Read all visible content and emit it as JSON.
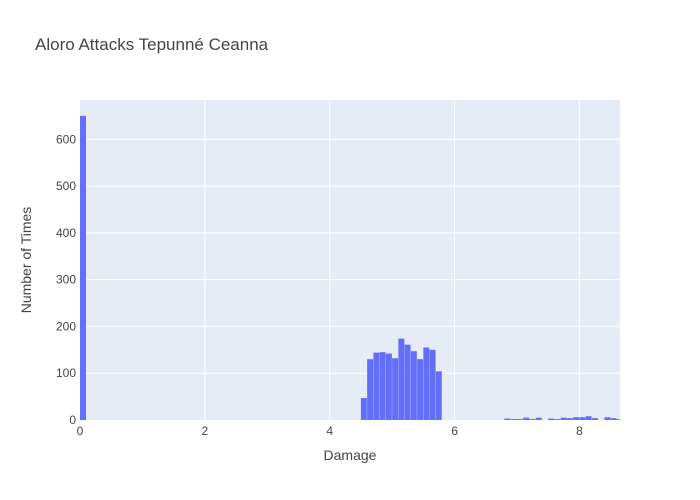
{
  "chart_data": {
    "type": "bar",
    "title": "Aloro Attacks Tepunné Ceanna",
    "xlabel": "Damage",
    "ylabel": "Number of Times",
    "xlim": [
      0,
      8.65
    ],
    "ylim": [
      0,
      684
    ],
    "bin_width": 0.1,
    "x_ticks": [
      0,
      2,
      4,
      6,
      8
    ],
    "y_ticks": [
      0,
      100,
      200,
      300,
      400,
      500,
      600
    ],
    "grid": true,
    "bar_color": "#636efa",
    "plot_bg": "#e5ecf6",
    "bins": [
      {
        "x0": 0.0,
        "y": 650
      },
      {
        "x0": 4.5,
        "y": 47
      },
      {
        "x0": 4.6,
        "y": 130
      },
      {
        "x0": 4.7,
        "y": 144
      },
      {
        "x0": 4.8,
        "y": 145
      },
      {
        "x0": 4.9,
        "y": 142
      },
      {
        "x0": 5.0,
        "y": 132
      },
      {
        "x0": 5.1,
        "y": 174
      },
      {
        "x0": 5.2,
        "y": 161
      },
      {
        "x0": 5.3,
        "y": 147
      },
      {
        "x0": 5.4,
        "y": 130
      },
      {
        "x0": 5.5,
        "y": 155
      },
      {
        "x0": 5.6,
        "y": 150
      },
      {
        "x0": 5.7,
        "y": 104
      },
      {
        "x0": 6.8,
        "y": 3
      },
      {
        "x0": 6.9,
        "y": 2
      },
      {
        "x0": 7.0,
        "y": 2
      },
      {
        "x0": 7.1,
        "y": 5
      },
      {
        "x0": 7.2,
        "y": 2
      },
      {
        "x0": 7.3,
        "y": 5
      },
      {
        "x0": 7.5,
        "y": 3
      },
      {
        "x0": 7.6,
        "y": 2
      },
      {
        "x0": 7.7,
        "y": 5
      },
      {
        "x0": 7.8,
        "y": 4
      },
      {
        "x0": 7.9,
        "y": 6
      },
      {
        "x0": 8.0,
        "y": 6
      },
      {
        "x0": 8.1,
        "y": 8
      },
      {
        "x0": 8.2,
        "y": 4
      },
      {
        "x0": 8.4,
        "y": 6
      },
      {
        "x0": 8.5,
        "y": 4
      },
      {
        "x0": 8.6,
        "y": 2
      }
    ]
  }
}
